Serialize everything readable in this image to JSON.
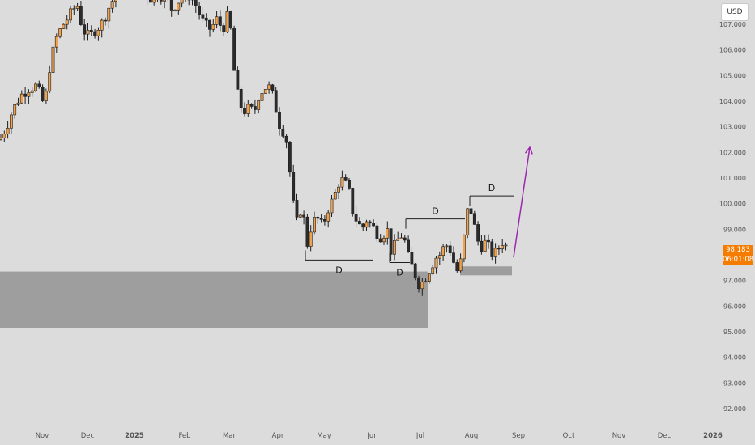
{
  "currency_label": "USD",
  "last_price": "98.183",
  "countdown": "06:01:08",
  "colors": {
    "background": "#dcdcdc",
    "candle_up": "#f0a14a",
    "candle_down": "#2b2b2b",
    "zone": "#9e9e9e",
    "arrow": "#9c27b0",
    "price_tag": "#f57c00",
    "axis_text": "#555555"
  },
  "chart_data": {
    "type": "candlestick",
    "ylim": [
      91.5,
      108.0
    ],
    "y_ticks": [
      "92.000",
      "93.000",
      "94.000",
      "95.000",
      "96.000",
      "97.000",
      "98.000",
      "99.000",
      "100.000",
      "101.000",
      "102.000",
      "103.000",
      "104.000",
      "105.000",
      "106.000",
      "107.000"
    ],
    "x_ticks": [
      "Nov",
      "Dec",
      "2025",
      "Feb",
      "Mar",
      "Apr",
      "May",
      "Jun",
      "Jul",
      "Aug",
      "Sep",
      "Oct",
      "Nov",
      "Dec",
      "2026"
    ],
    "grid": false,
    "price_path": [
      [
        0,
        102.5
      ],
      [
        8,
        103.0
      ],
      [
        15,
        103.6
      ],
      [
        25,
        104.2
      ],
      [
        35,
        104.5
      ],
      [
        45,
        104.6
      ],
      [
        55,
        103.8
      ],
      [
        62,
        105.5
      ],
      [
        70,
        106.5
      ],
      [
        78,
        107.0
      ],
      [
        85,
        107.3
      ],
      [
        95,
        107.8
      ],
      [
        102,
        106.8
      ],
      [
        110,
        106.5
      ],
      [
        118,
        106.8
      ],
      [
        125,
        107.0
      ],
      [
        135,
        107.7
      ],
      [
        145,
        108.3
      ],
      [
        155,
        108.5
      ],
      [
        165,
        108.3
      ],
      [
        175,
        108.3
      ],
      [
        185,
        108.0
      ],
      [
        195,
        108.2
      ],
      [
        205,
        108.0
      ],
      [
        212,
        107.6
      ],
      [
        220,
        107.9
      ],
      [
        230,
        108.2
      ],
      [
        238,
        108.0
      ],
      [
        245,
        107.5
      ],
      [
        252,
        107.0
      ],
      [
        260,
        106.8
      ],
      [
        268,
        107.2
      ],
      [
        275,
        106.8
      ],
      [
        282,
        107.4
      ],
      [
        286,
        106.5
      ],
      [
        290,
        104.8
      ],
      [
        295,
        104.0
      ],
      [
        300,
        103.6
      ],
      [
        307,
        103.7
      ],
      [
        314,
        103.6
      ],
      [
        320,
        104.3
      ],
      [
        326,
        104.5
      ],
      [
        331,
        104.6
      ],
      [
        337,
        104.2
      ],
      [
        342,
        103.5
      ],
      [
        347,
        102.8
      ],
      [
        352,
        102.9
      ],
      [
        357,
        101.5
      ],
      [
        362,
        100.0
      ],
      [
        366,
        99.2
      ],
      [
        370,
        99.8
      ],
      [
        375,
        99.4
      ],
      [
        380,
        98.3
      ],
      [
        385,
        99.3
      ],
      [
        392,
        99.4
      ],
      [
        398,
        99.1
      ],
      [
        405,
        99.8
      ],
      [
        410,
        100.1
      ],
      [
        415,
        100.5
      ],
      [
        420,
        101.0
      ],
      [
        425,
        100.8
      ],
      [
        430,
        100.6
      ],
      [
        436,
        99.6
      ],
      [
        441,
        99.3
      ],
      [
        447,
        99.0
      ],
      [
        452,
        99.4
      ],
      [
        457,
        99.2
      ],
      [
        463,
        99.0
      ],
      [
        468,
        98.7
      ],
      [
        473,
        98.8
      ],
      [
        478,
        99.0
      ],
      [
        483,
        98.1
      ],
      [
        488,
        98.4
      ],
      [
        493,
        98.7
      ],
      [
        498,
        98.8
      ],
      [
        503,
        98.0
      ],
      [
        508,
        97.6
      ],
      [
        513,
        97.2
      ],
      [
        518,
        96.8
      ],
      [
        523,
        97.0
      ],
      [
        528,
        97.3
      ],
      [
        533,
        97.6
      ],
      [
        538,
        97.9
      ],
      [
        543,
        98.0
      ],
      [
        548,
        98.3
      ],
      [
        553,
        98.4
      ],
      [
        558,
        98.0
      ],
      [
        563,
        97.3
      ],
      [
        568,
        97.6
      ],
      [
        572,
        98.4
      ],
      [
        576,
        99.6
      ],
      [
        580,
        99.9
      ],
      [
        584,
        99.4
      ],
      [
        588,
        98.7
      ],
      [
        593,
        98.3
      ],
      [
        598,
        98.5
      ],
      [
        603,
        98.3
      ],
      [
        608,
        98.0
      ],
      [
        613,
        98.1
      ],
      [
        618,
        98.4
      ],
      [
        622,
        98.6
      ],
      [
        626,
        98.183
      ]
    ],
    "annotations": [
      {
        "label": "D",
        "kind": "level",
        "price": 97.8,
        "x1": 377,
        "x2": 460,
        "label_side": "below"
      },
      {
        "label": "D",
        "kind": "level",
        "price": 97.7,
        "x1": 481,
        "x2": 506,
        "label_side": "below"
      },
      {
        "label": "D",
        "kind": "level",
        "price": 99.4,
        "x1": 501,
        "x2": 574,
        "label_side": "above"
      },
      {
        "label": "D",
        "kind": "level",
        "price": 100.3,
        "x1": 580,
        "x2": 634,
        "label_side": "above"
      }
    ],
    "zones": [
      {
        "from": 95.15,
        "to": 97.35,
        "x1": 0,
        "x2": 528
      },
      {
        "from": 97.2,
        "to": 97.55,
        "x1": 568,
        "x2": 632
      }
    ],
    "arrow": {
      "from": [
        634,
        97.9
      ],
      "to": [
        654,
        102.2
      ]
    }
  }
}
